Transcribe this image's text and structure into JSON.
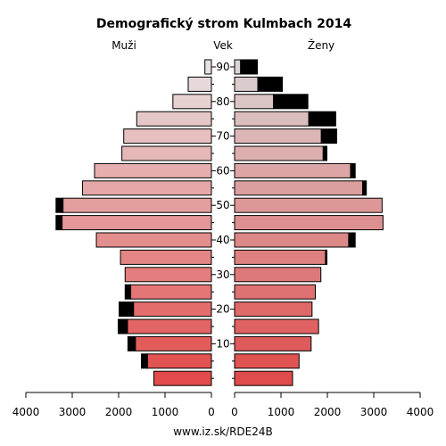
{
  "chart_data": {
    "type": "bar",
    "title": "Demografický strom Kulmbach 2014",
    "left_label": "Muži",
    "center_label": "Vek",
    "right_label": "Ženy",
    "footer": "www.iz.sk/RDE24B",
    "age_groups": [
      "0-4",
      "5-9",
      "10-14",
      "15-19",
      "20-24",
      "25-29",
      "30-34",
      "35-39",
      "40-44",
      "45-49",
      "50-54",
      "55-59",
      "60-64",
      "65-69",
      "70-74",
      "75-79",
      "80-84",
      "85-89",
      "90+"
    ],
    "age_ticks": [
      10,
      20,
      30,
      40,
      50,
      60,
      70,
      80,
      90
    ],
    "x_ticks": [
      4000,
      3000,
      2000,
      1000,
      0
    ],
    "xlim": [
      0,
      4000
    ],
    "series": [
      {
        "name": "Muži",
        "base": [
          1240,
          1380,
          1640,
          1810,
          1680,
          1740,
          1860,
          1960,
          2480,
          3220,
          3200,
          2780,
          2520,
          1930,
          1890,
          1610,
          830,
          500,
          140
        ],
        "excess": [
          0,
          130,
          160,
          200,
          310,
          120,
          0,
          0,
          0,
          130,
          150,
          0,
          0,
          0,
          0,
          0,
          0,
          0,
          0
        ]
      },
      {
        "name": "Ženy",
        "base": [
          1250,
          1390,
          1650,
          1810,
          1670,
          1740,
          1860,
          1960,
          2460,
          3200,
          3180,
          2760,
          2500,
          1910,
          1870,
          1600,
          840,
          500,
          130
        ],
        "excess": [
          0,
          0,
          0,
          0,
          0,
          0,
          0,
          30,
          140,
          0,
          0,
          80,
          100,
          80,
          330,
          580,
          740,
          530,
          360
        ]
      }
    ]
  }
}
